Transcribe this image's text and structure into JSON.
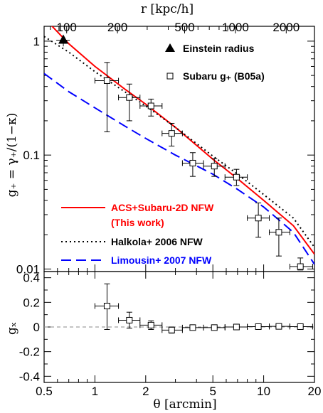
{
  "chart_data": [
    {
      "type": "line",
      "panel": "upper",
      "xlabel": "θ [arcmin]",
      "ylabel": "g₊ = γ₊/(1−κ)",
      "top_xlabel": "r [kpc/h]",
      "xscale": "log",
      "yscale": "log",
      "xlim": [
        0.5,
        20
      ],
      "ylim": [
        0.0095,
        1.35
      ],
      "x_ticks": [
        0.5,
        1,
        2,
        5,
        10,
        20
      ],
      "x_tick_labels": [
        "0.5",
        "1",
        "2",
        "5",
        "10",
        "20"
      ],
      "y_ticks": [
        0.01,
        0.1,
        1
      ],
      "y_tick_labels": [
        "0.01",
        "0.1",
        "1"
      ],
      "top_ticks_kpc": [
        100,
        200,
        500,
        1000,
        2000
      ],
      "top_tick_labels": [
        "100",
        "200",
        "500",
        "1000",
        "2000"
      ],
      "kpc_per_arcmin": 147,
      "einstein_radius": {
        "x": 0.65,
        "y": 1.02,
        "xerr": [
          0.06,
          0.06
        ],
        "yerr": [
          0.12,
          0.1
        ]
      },
      "subaru_points": [
        {
          "x": 1.18,
          "y": 0.45,
          "xlo": 1.0,
          "xhi": 1.38,
          "ylo": 0.16,
          "yhi": 0.65
        },
        {
          "x": 1.6,
          "y": 0.32,
          "xlo": 1.38,
          "xhi": 1.85,
          "ylo": 0.2,
          "yhi": 0.42
        },
        {
          "x": 2.15,
          "y": 0.27,
          "xlo": 1.85,
          "xhi": 2.5,
          "ylo": 0.22,
          "yhi": 0.31
        },
        {
          "x": 2.85,
          "y": 0.155,
          "xlo": 2.5,
          "xhi": 3.3,
          "ylo": 0.12,
          "yhi": 0.19
        },
        {
          "x": 3.8,
          "y": 0.085,
          "xlo": 3.3,
          "xhi": 4.4,
          "ylo": 0.065,
          "yhi": 0.105
        },
        {
          "x": 5.1,
          "y": 0.08,
          "xlo": 4.4,
          "xhi": 5.9,
          "ylo": 0.065,
          "yhi": 0.093
        },
        {
          "x": 6.9,
          "y": 0.064,
          "xlo": 5.9,
          "xhi": 8.0,
          "ylo": 0.054,
          "yhi": 0.075
        },
        {
          "x": 9.3,
          "y": 0.028,
          "xlo": 8.0,
          "xhi": 10.8,
          "ylo": 0.019,
          "yhi": 0.038
        },
        {
          "x": 12.3,
          "y": 0.021,
          "xlo": 10.8,
          "xhi": 14.3,
          "ylo": 0.013,
          "yhi": 0.028
        },
        {
          "x": 16.5,
          "y": 0.0105,
          "xlo": 14.3,
          "xhi": 19.5,
          "ylo": 0.0098,
          "yhi": 0.0125
        }
      ],
      "models": [
        {
          "name": "ACS+Subaru-2D NFW",
          "legend_line2": "(This work)",
          "color": "#ff0000",
          "dash": "solid",
          "x": [
            0.5,
            0.7,
            1,
            1.5,
            2,
            3,
            5,
            7,
            10,
            15,
            20
          ],
          "y": [
            1.6,
            0.95,
            0.6,
            0.38,
            0.28,
            0.175,
            0.092,
            0.062,
            0.04,
            0.024,
            0.0135
          ]
        },
        {
          "name": "Halkola+ 2006 NFW",
          "color": "#000000",
          "dash": "dotted",
          "x": [
            0.5,
            0.7,
            1,
            1.5,
            2,
            3,
            5,
            7,
            10,
            15,
            20
          ],
          "y": [
            1.1,
            0.8,
            0.54,
            0.36,
            0.27,
            0.175,
            0.098,
            0.068,
            0.045,
            0.028,
            0.0155
          ]
        },
        {
          "name": "Limousin+ 2007 NFW",
          "color": "#0000ff",
          "dash": "dashed",
          "x": [
            0.5,
            0.7,
            1,
            1.5,
            2,
            3,
            5,
            7,
            10,
            15,
            20
          ],
          "y": [
            0.52,
            0.36,
            0.26,
            0.18,
            0.14,
            0.1,
            0.068,
            0.05,
            0.035,
            0.021,
            0.011
          ]
        }
      ],
      "legend": {
        "einstein_label": "Einstein radius",
        "subaru_label": "Subaru g₊ (B05a)"
      }
    },
    {
      "type": "scatter",
      "panel": "lower",
      "xlabel": "θ [arcmin]",
      "ylabel": "gₓ",
      "xscale": "log",
      "xlim": [
        0.5,
        20
      ],
      "ylim": [
        -0.45,
        0.45
      ],
      "y_ticks": [
        0.4,
        0.2,
        0,
        -0.2,
        -0.4
      ],
      "y_tick_labels": [
        "0.4",
        "0.2",
        "0",
        "-0.2",
        "-0.4"
      ],
      "points": [
        {
          "x": 1.18,
          "y": 0.17,
          "xlo": 1.0,
          "xhi": 1.38,
          "ylo": -0.02,
          "yhi": 0.35
        },
        {
          "x": 1.6,
          "y": 0.055,
          "xlo": 1.38,
          "xhi": 1.85,
          "ylo": -0.01,
          "yhi": 0.12
        },
        {
          "x": 2.15,
          "y": 0.015,
          "xlo": 1.85,
          "xhi": 2.5,
          "ylo": -0.02,
          "yhi": 0.05
        },
        {
          "x": 2.85,
          "y": -0.025,
          "xlo": 2.5,
          "xhi": 3.3,
          "ylo": -0.05,
          "yhi": 0.0
        },
        {
          "x": 3.8,
          "y": -0.005,
          "xlo": 3.3,
          "xhi": 4.4,
          "ylo": -0.02,
          "yhi": 0.01
        },
        {
          "x": 5.1,
          "y": -0.005,
          "xlo": 4.4,
          "xhi": 5.9,
          "ylo": -0.015,
          "yhi": 0.005
        },
        {
          "x": 6.9,
          "y": 0.0,
          "xlo": 5.9,
          "xhi": 8.0,
          "ylo": -0.01,
          "yhi": 0.01
        },
        {
          "x": 9.3,
          "y": 0.003,
          "xlo": 8.0,
          "xhi": 10.8,
          "ylo": -0.01,
          "yhi": 0.015
        },
        {
          "x": 12.3,
          "y": 0.005,
          "xlo": 10.8,
          "xhi": 14.3,
          "ylo": -0.005,
          "yhi": 0.015
        },
        {
          "x": 16.5,
          "y": 0.003,
          "xlo": 14.3,
          "xhi": 19.5,
          "ylo": -0.005,
          "yhi": 0.01
        }
      ],
      "reference_line": 0
    }
  ]
}
